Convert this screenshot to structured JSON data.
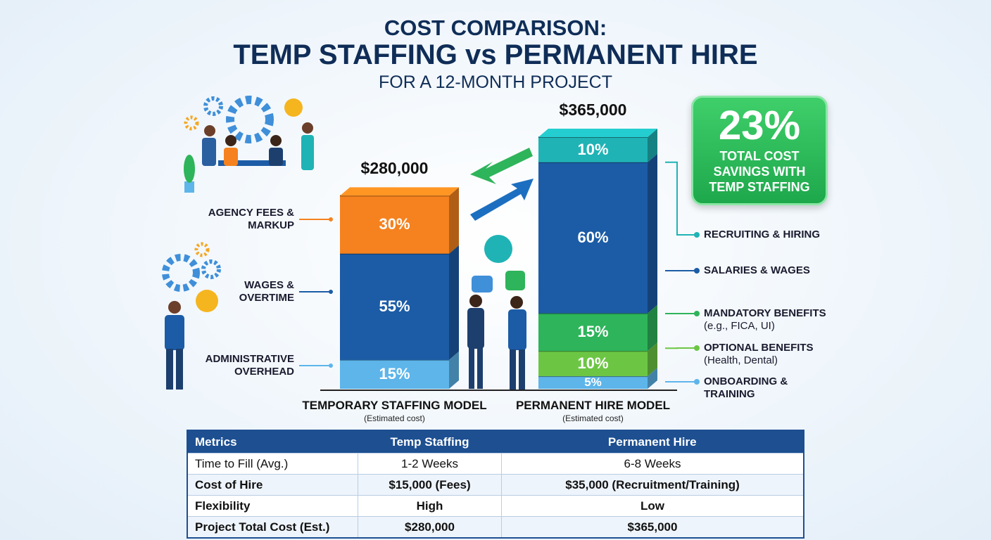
{
  "chart_data": {
    "type": "stacked_bar",
    "title": "COST COMPARISON:",
    "subtitle": "TEMP STAFFING vs PERMANENT HIRE",
    "caption": "FOR A 12-MONTH PROJECT",
    "bars": [
      {
        "label": "TEMPORARY STAFFING MODEL",
        "note": "(Estimated cost)",
        "total": 280000,
        "total_label": "$280,000",
        "segments": [
          {
            "name": "AGENCY FEES & MARKUP",
            "value": 30,
            "value_label": "30%",
            "color": "#f5821f"
          },
          {
            "name": "WAGES & OVERTIME",
            "value": 55,
            "value_label": "55%",
            "color": "#1c5ca6"
          },
          {
            "name": "ADMINISTRATIVE OVERHEAD",
            "value": 15,
            "value_label": "15%",
            "color": "#5db5ea"
          }
        ]
      },
      {
        "label": "PERMANENT HIRE MODEL",
        "note": "(Estimated cost)",
        "total": 365000,
        "total_label": "$365,000",
        "segments": [
          {
            "name": "RECRUITING & HIRING",
            "value": 10,
            "value_label": "10%",
            "color": "#1fb3b5"
          },
          {
            "name": "SALARIES & WAGES",
            "value": 60,
            "value_label": "60%",
            "color": "#1c5ca6"
          },
          {
            "name": "MANDATORY BENEFITS",
            "note": "(e.g., FICA, UI)",
            "value": 15,
            "value_label": "15%",
            "color": "#2eb45a"
          },
          {
            "name": "OPTIONAL BENEFITS",
            "note": "(Health, Dental)",
            "value": 10,
            "value_label": "10%",
            "color": "#6cc644"
          },
          {
            "name": "ONBOARDING & TRAINING",
            "value": 5,
            "value_label": "5%",
            "color": "#5db5ea"
          }
        ]
      }
    ],
    "callout": {
      "value": 23,
      "value_label": "23%",
      "text": "TOTAL COST SAVINGS WITH TEMP STAFFING"
    }
  },
  "table": {
    "header": [
      "Metrics",
      "Temp Staffing",
      "Permanent Hire"
    ],
    "rows": [
      [
        "Time to Fill (Avg.)",
        "1-2 Weeks",
        "6-8 Weeks"
      ],
      [
        "Cost of Hire",
        "$15,000 (Fees)",
        "$35,000 (Recruitment/Training)"
      ],
      [
        "Flexibility",
        "High",
        "Low"
      ],
      [
        "Project Total Cost (Est.)",
        "$280,000",
        "$365,000"
      ]
    ]
  }
}
